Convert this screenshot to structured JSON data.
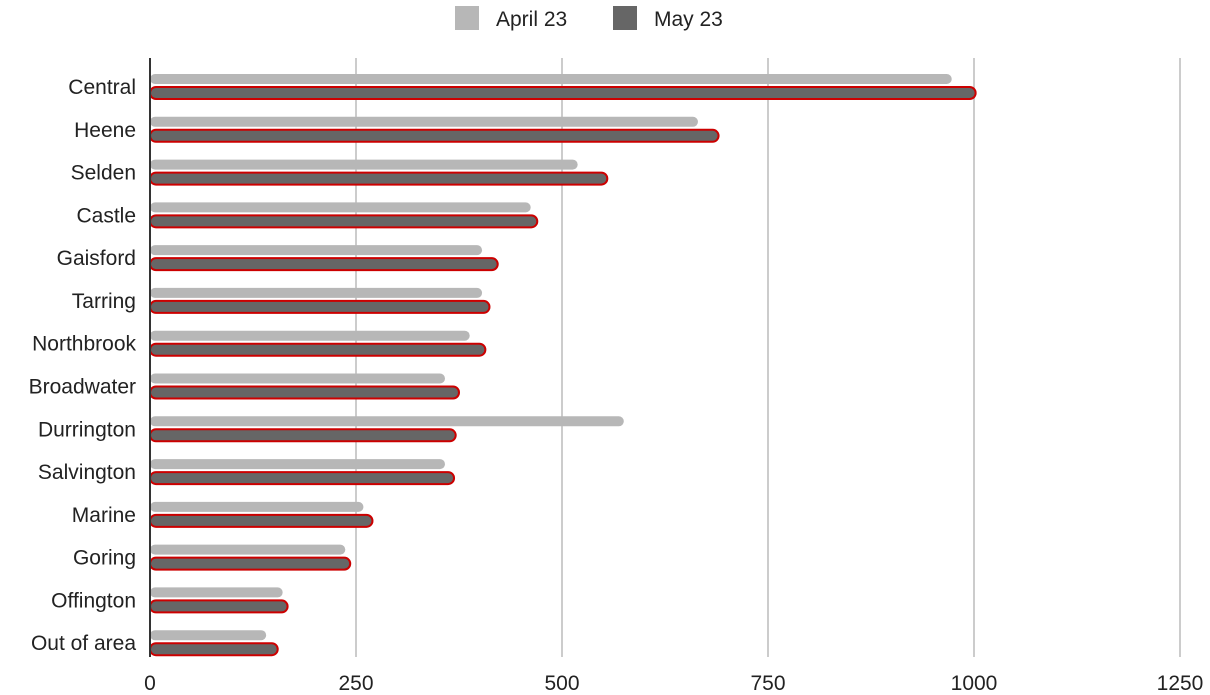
{
  "chart_data": {
    "type": "bar",
    "orientation": "horizontal",
    "categories": [
      "Central",
      "Heene",
      "Selden",
      "Castle",
      "Gaisford",
      "Tarring",
      "Northbrook",
      "Broadwater",
      "Durrington",
      "Salvington",
      "Marine",
      "Goring",
      "Offington",
      "Out of area"
    ],
    "series": [
      {
        "name": "April 23",
        "color": "#b7b7b7",
        "values": [
          973,
          665,
          519,
          462,
          403,
          403,
          388,
          358,
          575,
          358,
          259,
          237,
          161,
          141
        ]
      },
      {
        "name": "May 23",
        "color": "#666666",
        "outline": "#cc0000",
        "values": [
          1002,
          690,
          555,
          470,
          422,
          412,
          407,
          375,
          371,
          369,
          270,
          243,
          167,
          155
        ]
      }
    ],
    "xlim": [
      0,
      1250
    ],
    "xticks": [
      "0",
      "250",
      "500",
      "750",
      "1000",
      "1250"
    ],
    "xtick_values": [
      0,
      250,
      500,
      750,
      1000,
      1250
    ],
    "grid": "vertical",
    "legend": "top-center",
    "title": "",
    "xlabel": "",
    "ylabel": ""
  }
}
